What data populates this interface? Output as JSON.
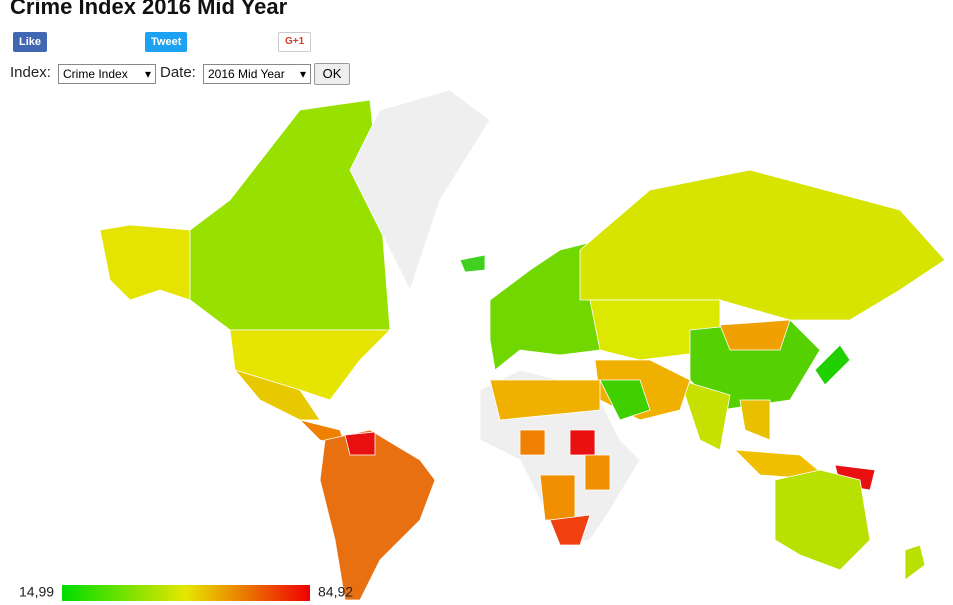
{
  "header": {
    "title": "Crime Index 2016 Mid Year"
  },
  "share": {
    "like": "Like",
    "tweet": "Tweet",
    "gplus": "G+1"
  },
  "controls": {
    "index_label": "Index:",
    "index_value": "Crime Index",
    "date_label": "Date:",
    "date_value": "2016 Mid Year",
    "ok": "OK"
  },
  "legend": {
    "min": "14,99",
    "max": "84,92",
    "colors": [
      "#00dd00",
      "#e6e600",
      "#f00000"
    ]
  }
}
